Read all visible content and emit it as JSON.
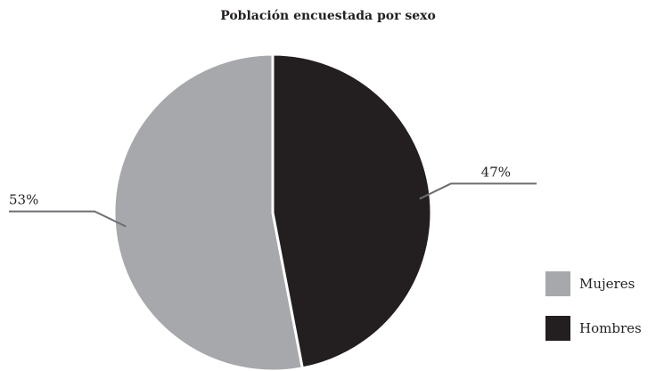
{
  "chart_data": {
    "type": "pie",
    "title": "Población encuestada por sexo",
    "categories": [
      "Mujeres",
      "Hombres"
    ],
    "values": [
      53,
      47
    ],
    "value_labels": [
      "53%",
      "47%"
    ],
    "colors": [
      "#a7a8ab",
      "#231f20"
    ],
    "legend": "right"
  }
}
